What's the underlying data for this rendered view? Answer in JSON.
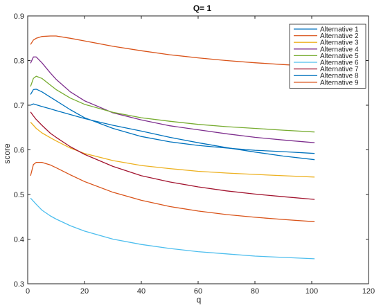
{
  "chart_data": {
    "type": "line",
    "title": "Q= 1",
    "xlabel": "q",
    "ylabel": "score",
    "xlim": [
      0,
      120
    ],
    "ylim": [
      0.3,
      0.9
    ],
    "xticks": [
      "0",
      "20",
      "40",
      "60",
      "80",
      "100",
      "120"
    ],
    "yticks": [
      "0.3",
      "0.4",
      "0.5",
      "0.6",
      "0.7",
      "0.8",
      "0.9"
    ],
    "grid": false,
    "legend_position": "top-right",
    "series": [
      {
        "name": "Alternative 1",
        "color": "#0072BD",
        "x": [
          1,
          2,
          3,
          5,
          8,
          10,
          15,
          20,
          30,
          40,
          50,
          60,
          70,
          80,
          90,
          101
        ],
        "y": [
          0.7,
          0.703,
          0.701,
          0.697,
          0.692,
          0.688,
          0.679,
          0.67,
          0.655,
          0.642,
          0.628,
          0.616,
          0.605,
          0.595,
          0.586,
          0.578
        ]
      },
      {
        "name": "Alternative 2",
        "color": "#D95319",
        "x": [
          1,
          2,
          3,
          5,
          8,
          10,
          15,
          20,
          30,
          40,
          50,
          60,
          70,
          80,
          90,
          101
        ],
        "y": [
          0.542,
          0.567,
          0.572,
          0.572,
          0.566,
          0.56,
          0.544,
          0.529,
          0.505,
          0.487,
          0.473,
          0.463,
          0.455,
          0.449,
          0.444,
          0.439
        ]
      },
      {
        "name": "Alternative 3",
        "color": "#EDB120",
        "x": [
          1,
          2,
          3,
          5,
          8,
          10,
          15,
          20,
          30,
          40,
          50,
          60,
          70,
          80,
          90,
          101
        ],
        "y": [
          0.662,
          0.655,
          0.648,
          0.638,
          0.627,
          0.62,
          0.604,
          0.592,
          0.576,
          0.565,
          0.558,
          0.552,
          0.548,
          0.545,
          0.542,
          0.539
        ]
      },
      {
        "name": "Alternative 4",
        "color": "#7E2F8E",
        "x": [
          1,
          2,
          3,
          5,
          8,
          10,
          15,
          20,
          30,
          40,
          50,
          60,
          70,
          80,
          90,
          101
        ],
        "y": [
          0.794,
          0.808,
          0.808,
          0.795,
          0.772,
          0.758,
          0.73,
          0.71,
          0.683,
          0.667,
          0.654,
          0.645,
          0.636,
          0.628,
          0.622,
          0.616
        ]
      },
      {
        "name": "Alternative 5",
        "color": "#77AC30",
        "x": [
          1,
          2,
          3,
          5,
          8,
          10,
          15,
          20,
          30,
          40,
          50,
          60,
          70,
          80,
          90,
          101
        ],
        "y": [
          0.742,
          0.76,
          0.765,
          0.76,
          0.745,
          0.735,
          0.716,
          0.702,
          0.684,
          0.672,
          0.664,
          0.657,
          0.652,
          0.648,
          0.644,
          0.64
        ]
      },
      {
        "name": "Alternative 6",
        "color": "#4DBEEE",
        "x": [
          1,
          2,
          3,
          5,
          8,
          10,
          15,
          20,
          30,
          40,
          50,
          60,
          70,
          80,
          90,
          101
        ],
        "y": [
          0.492,
          0.485,
          0.478,
          0.465,
          0.452,
          0.445,
          0.43,
          0.418,
          0.4,
          0.388,
          0.379,
          0.372,
          0.367,
          0.362,
          0.359,
          0.356
        ]
      },
      {
        "name": "Alternative 7",
        "color": "#A2142F",
        "x": [
          1,
          2,
          3,
          5,
          8,
          10,
          15,
          20,
          30,
          40,
          50,
          60,
          70,
          80,
          90,
          101
        ],
        "y": [
          0.685,
          0.676,
          0.668,
          0.655,
          0.637,
          0.628,
          0.607,
          0.59,
          0.563,
          0.542,
          0.528,
          0.517,
          0.508,
          0.501,
          0.495,
          0.489
        ]
      },
      {
        "name": "Alternative 8",
        "color": "#0072BD",
        "x": [
          1,
          2,
          3,
          5,
          8,
          10,
          15,
          20,
          30,
          40,
          50,
          60,
          70,
          80,
          90,
          101
        ],
        "y": [
          0.724,
          0.735,
          0.736,
          0.73,
          0.718,
          0.71,
          0.69,
          0.672,
          0.648,
          0.63,
          0.618,
          0.61,
          0.604,
          0.599,
          0.596,
          0.592
        ]
      },
      {
        "name": "Alternative 9",
        "color": "#D95319",
        "x": [
          1,
          2,
          3,
          5,
          8,
          10,
          15,
          20,
          30,
          40,
          50,
          60,
          70,
          80,
          90,
          101
        ],
        "y": [
          0.836,
          0.846,
          0.85,
          0.854,
          0.855,
          0.855,
          0.85,
          0.844,
          0.832,
          0.822,
          0.813,
          0.806,
          0.8,
          0.795,
          0.791,
          0.787
        ]
      }
    ]
  }
}
